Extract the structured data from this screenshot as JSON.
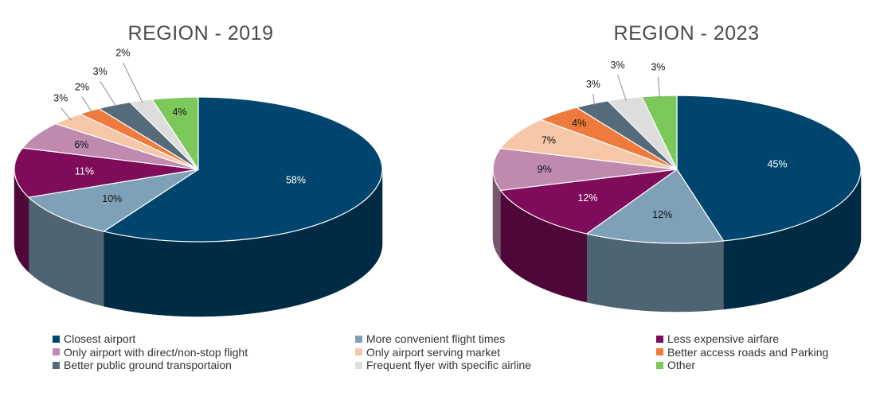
{
  "chart_data": [
    {
      "type": "pie",
      "title": "REGION - 2019",
      "slices": [
        {
          "label": "Closest airport",
          "value": 58,
          "display": "58%"
        },
        {
          "label": "More convenient flight times",
          "value": 10,
          "display": "10%"
        },
        {
          "label": "Less expensive airfare",
          "value": 11,
          "display": "11%"
        },
        {
          "label": "Only airport with direct/non-stop flight",
          "value": 6,
          "display": "6%"
        },
        {
          "label": "Only airport serving market",
          "value": 3,
          "display": "3%"
        },
        {
          "label": "Better access roads and Parking",
          "value": 2,
          "display": "2%"
        },
        {
          "label": "Better public ground transportaion",
          "value": 3,
          "display": "3%"
        },
        {
          "label": "Frequent flyer with specific airline",
          "value": 2,
          "display": "2%"
        },
        {
          "label": "Other",
          "value": 4,
          "display": "4%"
        }
      ]
    },
    {
      "type": "pie",
      "title": "REGION - 2023",
      "slices": [
        {
          "label": "Closest airport",
          "value": 45,
          "display": "45%"
        },
        {
          "label": "More convenient flight times",
          "value": 12,
          "display": "12%"
        },
        {
          "label": "Less expensive airfare",
          "value": 12,
          "display": "12%"
        },
        {
          "label": "Only airport with direct/non-stop flight",
          "value": 9,
          "display": "9%"
        },
        {
          "label": "Only airport serving market",
          "value": 7,
          "display": "7%"
        },
        {
          "label": "Better access roads and Parking",
          "value": 4,
          "display": "4%"
        },
        {
          "label": "Better public ground transportaion",
          "value": 3,
          "display": "3%"
        },
        {
          "label": "Frequent flyer with specific airline",
          "value": 3,
          "display": "3%"
        },
        {
          "label": "Other",
          "value": 3,
          "display": "3%"
        }
      ]
    }
  ],
  "legend": [
    {
      "label": "Closest airport",
      "color": "#00456e"
    },
    {
      "label": "More convenient flight times",
      "color": "#7fa1b8"
    },
    {
      "label": "Less expensive airfare",
      "color": "#7e0c5a"
    },
    {
      "label": "Only airport with direct/non-stop flight",
      "color": "#c08aaf"
    },
    {
      "label": "Only airport serving market",
      "color": "#f6c7a7"
    },
    {
      "label": "Better access roads and Parking",
      "color": "#ee7b3c"
    },
    {
      "label": "Better public ground transportaion",
      "color": "#566b7a"
    },
    {
      "label": "Frequent flyer with specific airline",
      "color": "#dddddd"
    },
    {
      "label": "Other",
      "color": "#7cc85a"
    }
  ]
}
